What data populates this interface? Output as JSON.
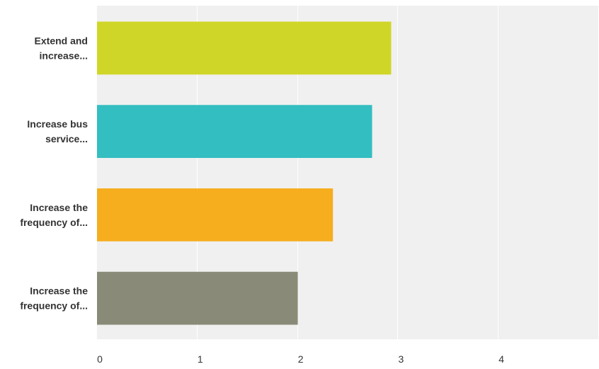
{
  "chart_data": {
    "type": "bar",
    "orientation": "horizontal",
    "categories": [
      [
        "Extend and",
        "increase..."
      ],
      [
        "Increase bus",
        "service..."
      ],
      [
        "Increase the",
        "frequency of..."
      ],
      [
        "Increase the",
        "frequency of..."
      ]
    ],
    "values": [
      2.93,
      2.74,
      2.35,
      2.0
    ],
    "colors": [
      "#cfd627",
      "#33bec1",
      "#f6ae1f",
      "#8a8a78"
    ],
    "xlim": [
      0,
      5
    ],
    "xticks": [
      "0",
      "1",
      "2",
      "3",
      "4",
      "5"
    ],
    "grid": true,
    "background": "#f0f0f0",
    "gridline_color": "#ffffff",
    "title": "",
    "xlabel": "",
    "ylabel": ""
  }
}
